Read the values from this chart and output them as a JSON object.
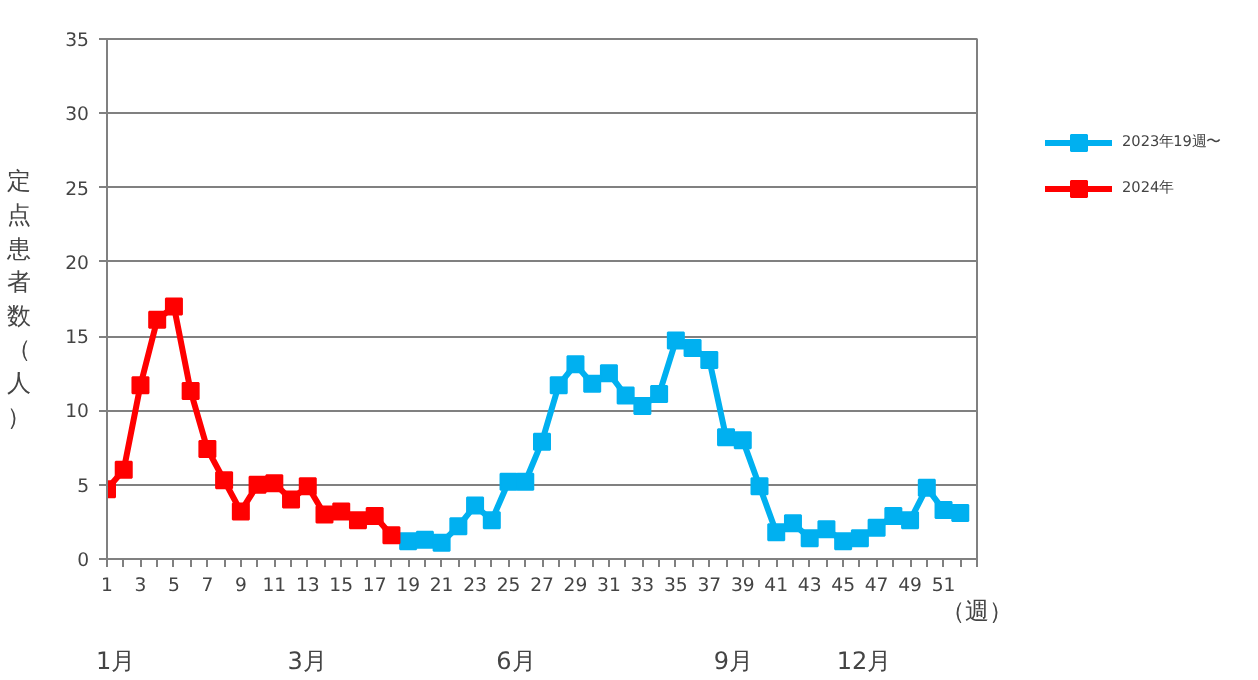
{
  "chart_data": {
    "type": "line",
    "ylabel": "定点患者数（人）",
    "xlabel": "（週）",
    "xlim": [
      1,
      53
    ],
    "ylim": [
      0,
      35
    ],
    "yticks": [
      0,
      5,
      10,
      15,
      20,
      25,
      30,
      35
    ],
    "xticks": [
      1,
      {
        "value": 2,
        "label": null
      },
      3,
      {
        "value": 4,
        "label": null
      },
      5,
      {
        "value": 6,
        "label": null
      },
      7,
      {
        "value": 8,
        "label": null
      },
      9,
      {
        "value": 10,
        "label": null
      },
      11,
      {
        "value": 12,
        "label": null
      },
      13,
      {
        "value": 14,
        "label": null
      },
      15,
      {
        "value": 16,
        "label": null
      },
      17,
      {
        "value": 18,
        "label": null
      },
      19,
      {
        "value": 20,
        "label": null
      },
      21,
      {
        "value": 22,
        "label": null
      },
      23,
      {
        "value": 24,
        "label": null
      },
      25,
      {
        "value": 26,
        "label": null
      },
      27,
      {
        "value": 28,
        "label": null
      },
      29,
      {
        "value": 30,
        "label": null
      },
      31,
      {
        "value": 32,
        "label": null
      },
      33,
      {
        "value": 34,
        "label": null
      },
      35,
      {
        "value": 36,
        "label": null
      },
      37,
      {
        "value": 38,
        "label": null
      },
      39,
      {
        "value": 40,
        "label": null
      },
      41,
      {
        "value": 42,
        "label": null
      },
      43,
      {
        "value": 44,
        "label": null
      },
      45,
      {
        "value": 46,
        "label": null
      },
      47,
      {
        "value": 48,
        "label": null
      },
      49,
      {
        "value": 50,
        "label": null
      },
      51,
      {
        "value": 52,
        "label": null
      },
      {
        "value": 53,
        "label": null
      }
    ],
    "series": [
      {
        "name": "2023年19週〜",
        "color": "#00b0f0",
        "x": [
          19,
          20,
          21,
          22,
          23,
          24,
          25,
          26,
          27,
          28,
          29,
          30,
          31,
          32,
          33,
          34,
          35,
          36,
          37,
          38,
          39,
          40,
          41,
          42,
          43,
          44,
          45,
          46,
          47,
          48,
          49,
          50,
          51,
          52
        ],
        "values": [
          1.2,
          1.3,
          1.1,
          2.2,
          3.6,
          2.6,
          5.2,
          5.2,
          7.9,
          11.7,
          13.1,
          11.8,
          12.5,
          11.0,
          10.3,
          11.1,
          14.7,
          14.2,
          13.4,
          8.2,
          8.0,
          4.9,
          1.8,
          2.4,
          1.4,
          2.0,
          1.2,
          1.4,
          2.1,
          2.9,
          2.6,
          4.8,
          3.3,
          3.1
        ]
      },
      {
        "name": "2024年",
        "color": "#ff0000",
        "x": [
          1,
          2,
          3,
          4,
          5,
          6,
          7,
          8,
          9,
          10,
          11,
          12,
          13,
          14,
          15,
          16,
          17,
          18
        ],
        "values": [
          4.7,
          6.0,
          11.7,
          16.1,
          17.0,
          11.3,
          7.4,
          5.3,
          3.2,
          5.0,
          5.1,
          4.0,
          4.9,
          3.0,
          3.2,
          2.6,
          2.9,
          1.6
        ]
      }
    ],
    "marker": "square",
    "grid": "y",
    "legend": "right",
    "annotations": [
      "1月",
      "3月",
      "6月",
      "9月",
      "12月"
    ]
  }
}
